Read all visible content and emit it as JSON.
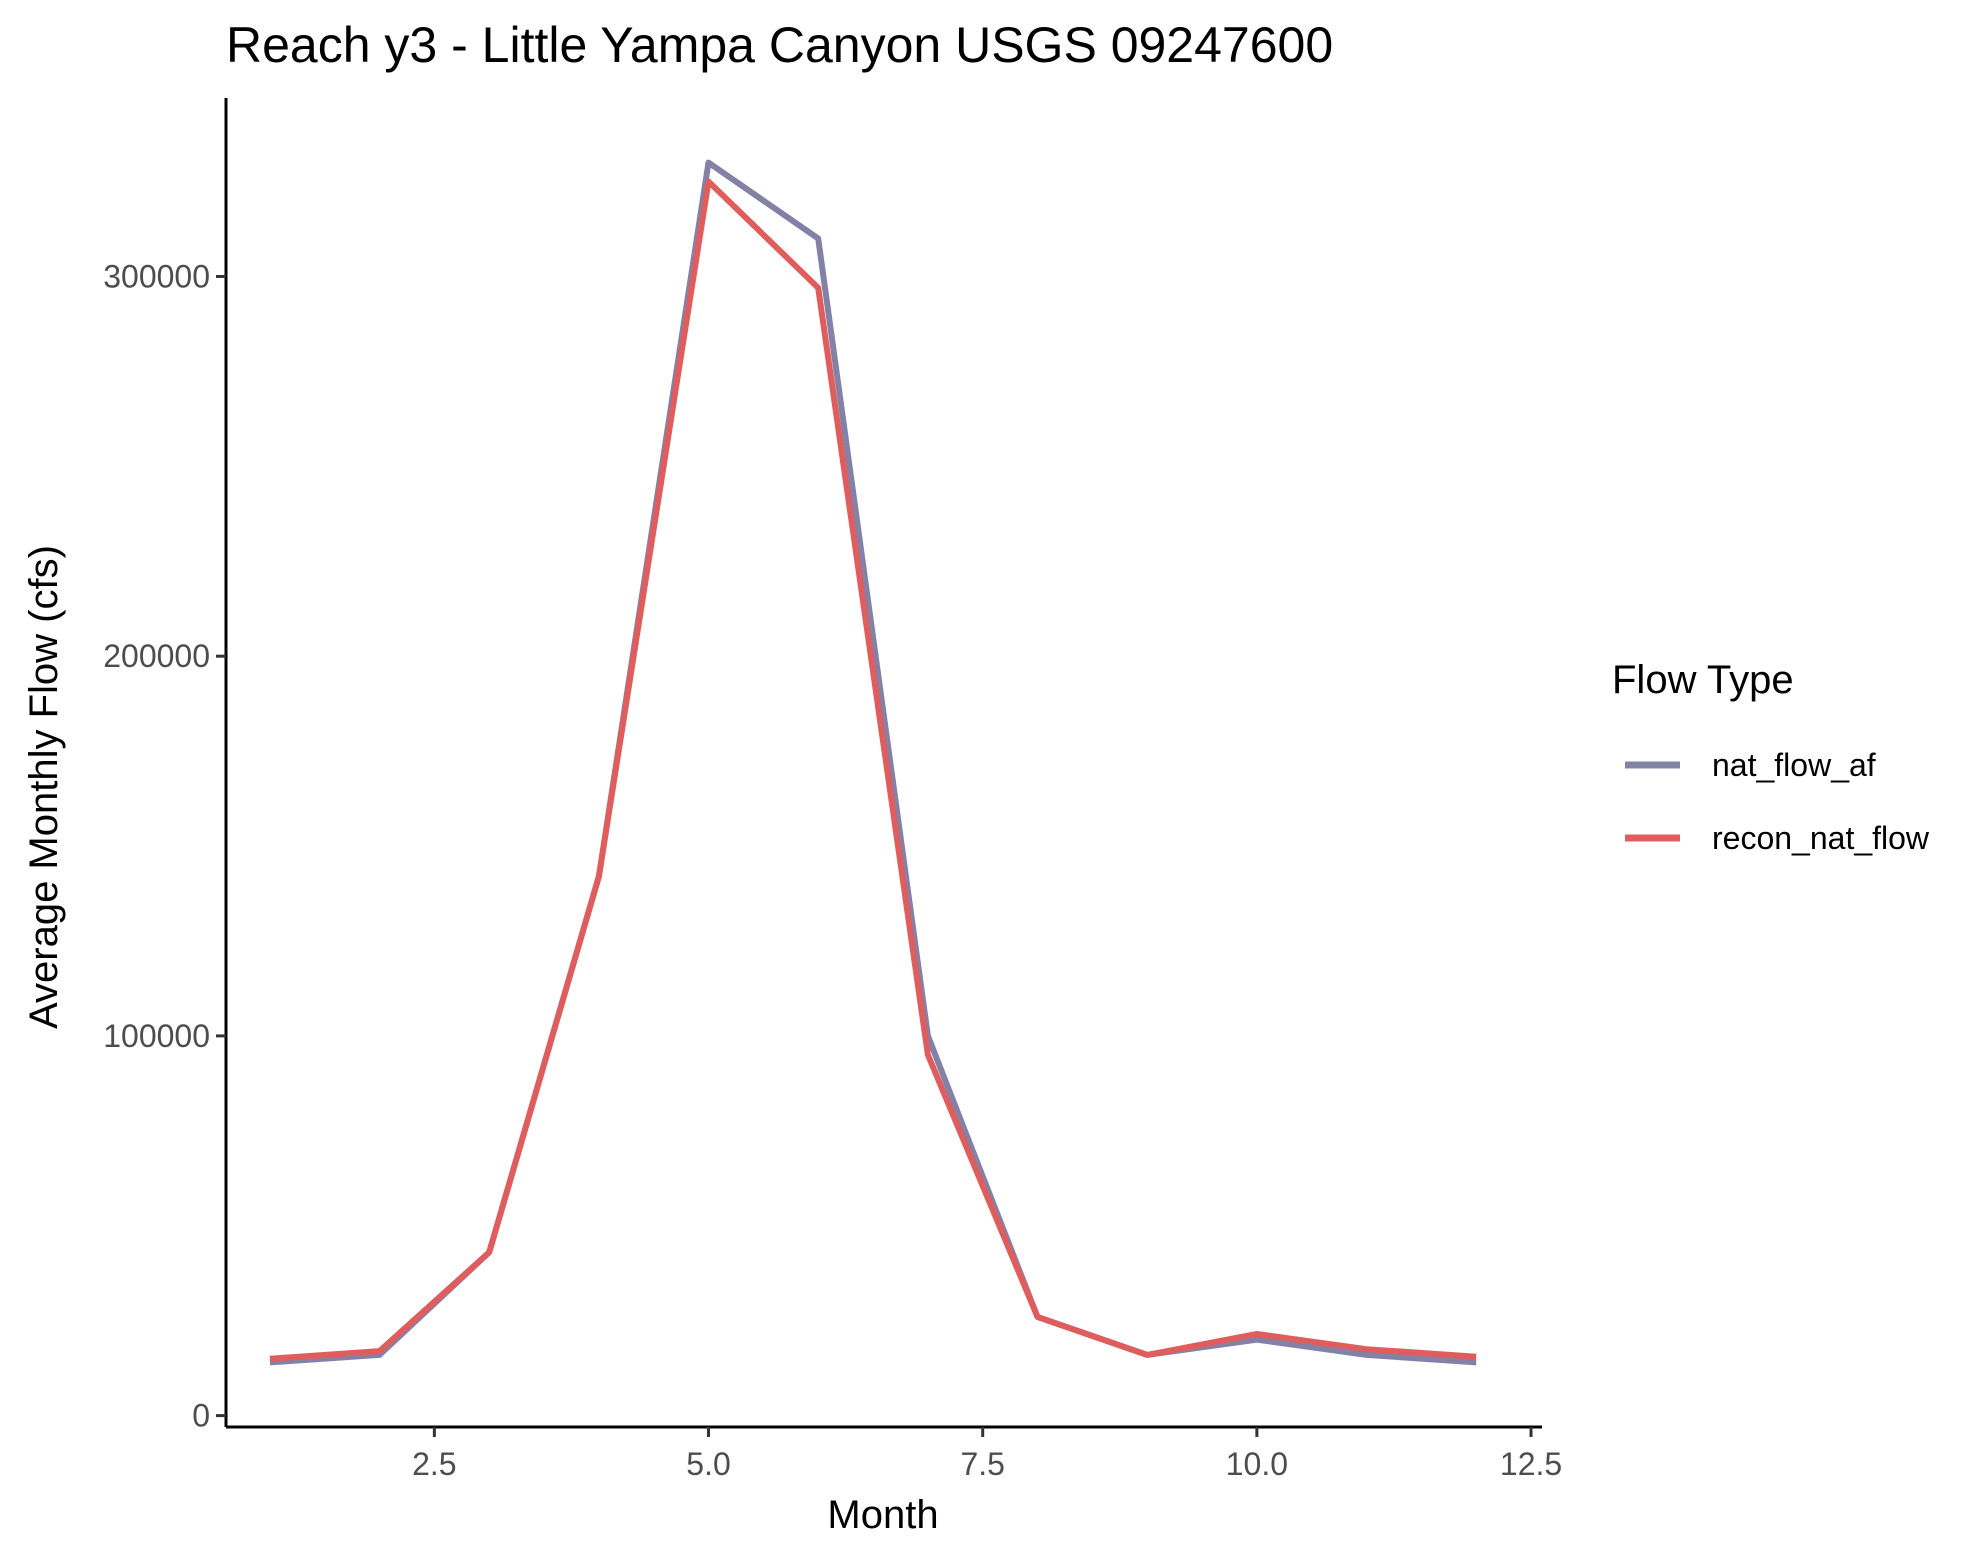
{
  "chart_data": {
    "type": "line",
    "title": "Reach y3 - Little Yampa Canyon USGS 09247600",
    "xlabel": "Month",
    "ylabel": "Average Monthly Flow (cfs)",
    "xlim": [
      0.6,
      12.6
    ],
    "ylim": [
      -3000,
      347000
    ],
    "x_ticks": [
      2.5,
      5.0,
      7.5,
      10.0,
      12.5
    ],
    "x_tick_labels": [
      "2.5",
      "5.0",
      "7.5",
      "10.0",
      "12.5"
    ],
    "y_ticks": [
      0,
      100000,
      200000,
      300000
    ],
    "y_tick_labels": [
      "0",
      "100000",
      "200000",
      "300000"
    ],
    "grid": false,
    "legend": {
      "title": "Flow Type",
      "position": "right"
    },
    "x": [
      1,
      2,
      3,
      4,
      5,
      6,
      7,
      8,
      9,
      10,
      11,
      12
    ],
    "series": [
      {
        "name": "nat_flow_af",
        "color": "#8382a6",
        "values": [
          14000,
          16000,
          43000,
          142000,
          330000,
          310000,
          100000,
          26000,
          16000,
          20000,
          16000,
          14000
        ]
      },
      {
        "name": "recon_nat_flow",
        "color": "#e05d5d",
        "values": [
          15000,
          17000,
          43000,
          142000,
          325000,
          297000,
          95000,
          26000,
          16000,
          21500,
          17500,
          15500
        ]
      }
    ]
  }
}
